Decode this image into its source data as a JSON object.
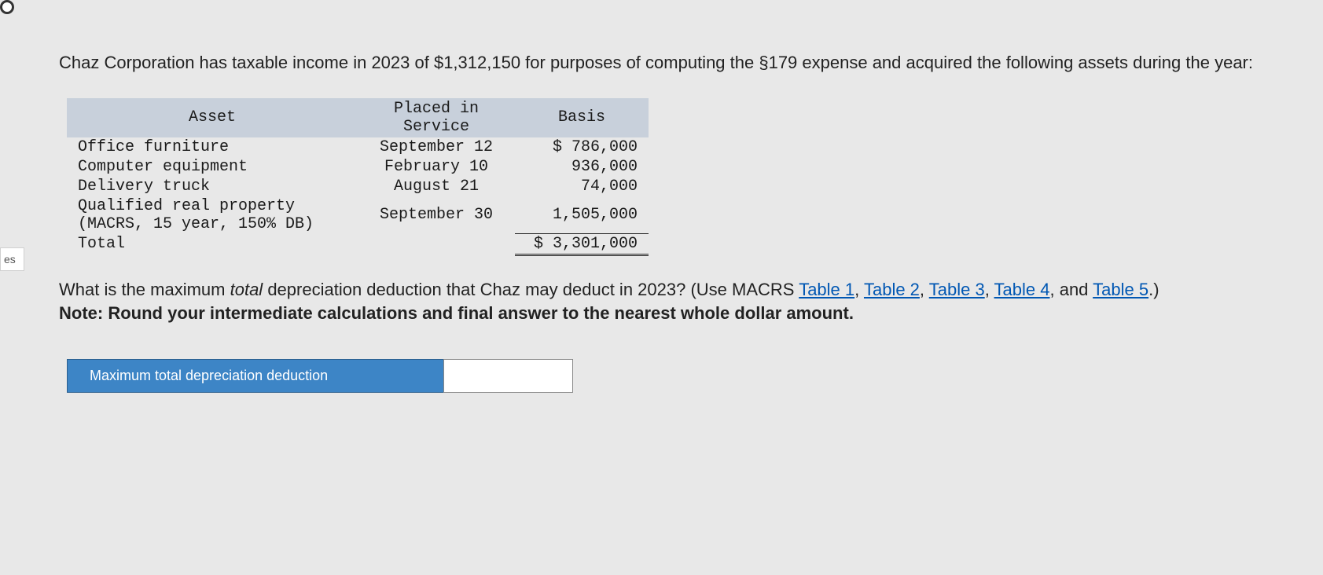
{
  "sidebar_fragment": "es",
  "intro": "Chaz Corporation has taxable income in 2023 of $1,312,150 for purposes of computing the §179 expense and acquired the following assets during the year:",
  "table": {
    "headers": {
      "asset": "Asset",
      "placed": "Placed in\nService",
      "basis": "Basis"
    },
    "rows": [
      {
        "asset": "Office furniture",
        "placed": "September 12",
        "basis": "$ 786,000"
      },
      {
        "asset": "Computer equipment",
        "placed": "February 10",
        "basis": "936,000"
      },
      {
        "asset": "Delivery truck",
        "placed": "August 21",
        "basis": "74,000"
      },
      {
        "asset": "Qualified real property (MACRS, 15 year, 150% DB)",
        "placed": "September 30",
        "basis": "1,505,000"
      }
    ],
    "total_label": "Total",
    "total_basis": "$ 3,301,000"
  },
  "question": {
    "prefix": "What is the maximum ",
    "italic": "total",
    "mid": " depreciation deduction that Chaz may deduct in 2023? (Use MACRS ",
    "link1": "Table 1",
    "sep": ", ",
    "link2": "Table 2",
    "link3": "Table 3",
    "link4": "Table 4",
    "and": ", and ",
    "link5": "Table 5",
    "suffix": ".)"
  },
  "note": "Note: Round your intermediate calculations and final answer to the nearest whole dollar amount.",
  "answer": {
    "label": "Maximum total depreciation deduction",
    "value": ""
  }
}
